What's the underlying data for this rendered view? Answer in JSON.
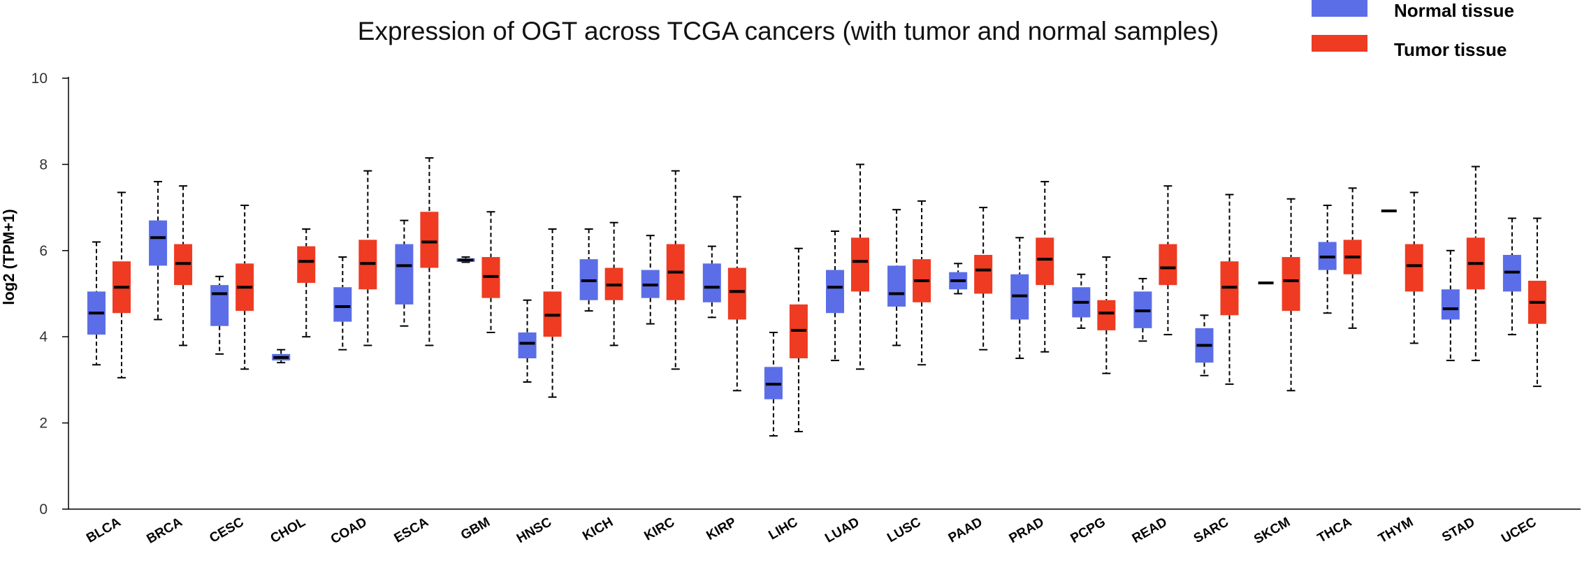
{
  "chart_data": {
    "type": "boxplot",
    "title": "Expression of OGT across TCGA cancers (with tumor and normal samples)",
    "xlabel": "",
    "ylabel": "log2 (TPM+1)",
    "ylim": [
      0,
      10
    ],
    "yticks": [
      0,
      2,
      4,
      6,
      8,
      10
    ],
    "legend_position": "top-right",
    "series_colors": {
      "normal": "#5b6ee8",
      "tumor": "#ee3b22"
    },
    "legend": [
      {
        "name": "Normal tissue",
        "key": "normal"
      },
      {
        "name": "Tumor tissue",
        "key": "tumor"
      }
    ],
    "categories": [
      {
        "label": "BLCA",
        "normal": {
          "min": 3.35,
          "q1": 4.05,
          "median": 4.55,
          "q3": 5.05,
          "max": 6.2
        },
        "tumor": {
          "min": 3.05,
          "q1": 4.55,
          "median": 5.15,
          "q3": 5.75,
          "max": 7.35
        }
      },
      {
        "label": "BRCA",
        "normal": {
          "min": 4.4,
          "q1": 5.65,
          "median": 6.3,
          "q3": 6.7,
          "max": 7.6
        },
        "tumor": {
          "min": 3.8,
          "q1": 5.2,
          "median": 5.7,
          "q3": 6.15,
          "max": 7.5
        }
      },
      {
        "label": "CESC",
        "normal": {
          "min": 3.6,
          "q1": 4.25,
          "median": 5.0,
          "q3": 5.2,
          "max": 5.4
        },
        "tumor": {
          "min": 3.25,
          "q1": 4.6,
          "median": 5.15,
          "q3": 5.7,
          "max": 7.05
        }
      },
      {
        "label": "CHOL",
        "normal": {
          "min": 3.4,
          "q1": 3.45,
          "median": 3.52,
          "q3": 3.6,
          "max": 3.7
        },
        "tumor": {
          "min": 4.0,
          "q1": 5.25,
          "median": 5.75,
          "q3": 6.1,
          "max": 6.5
        }
      },
      {
        "label": "COAD",
        "normal": {
          "min": 3.7,
          "q1": 4.35,
          "median": 4.7,
          "q3": 5.15,
          "max": 5.85
        },
        "tumor": {
          "min": 3.8,
          "q1": 5.1,
          "median": 5.7,
          "q3": 6.25,
          "max": 7.85
        }
      },
      {
        "label": "ESCA",
        "normal": {
          "min": 4.25,
          "q1": 4.75,
          "median": 5.65,
          "q3": 6.15,
          "max": 6.7
        },
        "tumor": {
          "min": 3.8,
          "q1": 5.6,
          "median": 6.2,
          "q3": 6.9,
          "max": 8.15
        }
      },
      {
        "label": "GBM",
        "normal": {
          "min": 5.73,
          "q1": 5.74,
          "median": 5.78,
          "q3": 5.82,
          "max": 5.85
        },
        "tumor": {
          "min": 4.1,
          "q1": 4.9,
          "median": 5.4,
          "q3": 5.85,
          "max": 6.9
        }
      },
      {
        "label": "HNSC",
        "normal": {
          "min": 2.95,
          "q1": 3.5,
          "median": 3.85,
          "q3": 4.1,
          "max": 4.85
        },
        "tumor": {
          "min": 2.6,
          "q1": 4.0,
          "median": 4.5,
          "q3": 5.05,
          "max": 6.5
        }
      },
      {
        "label": "KICH",
        "normal": {
          "min": 4.6,
          "q1": 4.85,
          "median": 5.3,
          "q3": 5.8,
          "max": 6.5
        },
        "tumor": {
          "min": 3.8,
          "q1": 4.85,
          "median": 5.2,
          "q3": 5.6,
          "max": 6.65
        }
      },
      {
        "label": "KIRC",
        "normal": {
          "min": 4.3,
          "q1": 4.9,
          "median": 5.2,
          "q3": 5.55,
          "max": 6.35
        },
        "tumor": {
          "min": 3.25,
          "q1": 4.85,
          "median": 5.5,
          "q3": 6.15,
          "max": 7.85
        }
      },
      {
        "label": "KIRP",
        "normal": {
          "min": 4.45,
          "q1": 4.8,
          "median": 5.15,
          "q3": 5.7,
          "max": 6.1
        },
        "tumor": {
          "min": 2.75,
          "q1": 4.4,
          "median": 5.05,
          "q3": 5.6,
          "max": 7.25
        }
      },
      {
        "label": "LIHC",
        "normal": {
          "min": 1.7,
          "q1": 2.55,
          "median": 2.9,
          "q3": 3.3,
          "max": 4.1
        },
        "tumor": {
          "min": 1.8,
          "q1": 3.5,
          "median": 4.15,
          "q3": 4.75,
          "max": 6.05
        }
      },
      {
        "label": "LUAD",
        "normal": {
          "min": 3.45,
          "q1": 4.55,
          "median": 5.15,
          "q3": 5.55,
          "max": 6.45
        },
        "tumor": {
          "min": 3.25,
          "q1": 5.05,
          "median": 5.75,
          "q3": 6.3,
          "max": 8.0
        }
      },
      {
        "label": "LUSC",
        "normal": {
          "min": 3.8,
          "q1": 4.7,
          "median": 5.0,
          "q3": 5.65,
          "max": 6.95
        },
        "tumor": {
          "min": 3.35,
          "q1": 4.8,
          "median": 5.3,
          "q3": 5.8,
          "max": 7.15
        }
      },
      {
        "label": "PAAD",
        "normal": {
          "min": 5.0,
          "q1": 5.1,
          "median": 5.3,
          "q3": 5.5,
          "max": 5.7
        },
        "tumor": {
          "min": 3.7,
          "q1": 5.0,
          "median": 5.55,
          "q3": 5.9,
          "max": 7.0
        }
      },
      {
        "label": "PRAD",
        "normal": {
          "min": 3.5,
          "q1": 4.4,
          "median": 4.95,
          "q3": 5.45,
          "max": 6.3
        },
        "tumor": {
          "min": 3.65,
          "q1": 5.2,
          "median": 5.8,
          "q3": 6.3,
          "max": 7.6
        }
      },
      {
        "label": "PCPG",
        "normal": {
          "min": 4.2,
          "q1": 4.45,
          "median": 4.8,
          "q3": 5.15,
          "max": 5.45
        },
        "tumor": {
          "min": 3.15,
          "q1": 4.15,
          "median": 4.55,
          "q3": 4.85,
          "max": 5.85
        }
      },
      {
        "label": "READ",
        "normal": {
          "min": 3.9,
          "q1": 4.2,
          "median": 4.6,
          "q3": 5.05,
          "max": 5.35
        },
        "tumor": {
          "min": 4.05,
          "q1": 5.2,
          "median": 5.6,
          "q3": 6.15,
          "max": 7.5
        }
      },
      {
        "label": "SARC",
        "normal": {
          "min": 3.1,
          "q1": 3.4,
          "median": 3.8,
          "q3": 4.2,
          "max": 4.5
        },
        "tumor": {
          "min": 2.9,
          "q1": 4.5,
          "median": 5.15,
          "q3": 5.75,
          "max": 7.3
        }
      },
      {
        "label": "SKCM",
        "normal": {
          "min": 5.25,
          "q1": 5.25,
          "median": 5.25,
          "q3": 5.25,
          "max": 5.25
        },
        "tumor": {
          "min": 2.75,
          "q1": 4.6,
          "median": 5.3,
          "q3": 5.85,
          "max": 7.2
        }
      },
      {
        "label": "THCA",
        "normal": {
          "min": 4.55,
          "q1": 5.55,
          "median": 5.85,
          "q3": 6.2,
          "max": 7.05
        },
        "tumor": {
          "min": 4.2,
          "q1": 5.45,
          "median": 5.85,
          "q3": 6.25,
          "max": 7.45
        }
      },
      {
        "label": "THYM",
        "normal": {
          "min": 6.92,
          "q1": 6.92,
          "median": 6.92,
          "q3": 6.92,
          "max": 6.92
        },
        "tumor": {
          "min": 3.85,
          "q1": 5.05,
          "median": 5.65,
          "q3": 6.15,
          "max": 7.35
        }
      },
      {
        "label": "STAD",
        "normal": {
          "min": 3.45,
          "q1": 4.4,
          "median": 4.65,
          "q3": 5.1,
          "max": 6.0
        },
        "tumor": {
          "min": 3.45,
          "q1": 5.1,
          "median": 5.7,
          "q3": 6.3,
          "max": 7.95
        }
      },
      {
        "label": "UCEC",
        "normal": {
          "min": 4.05,
          "q1": 5.05,
          "median": 5.5,
          "q3": 5.9,
          "max": 6.75
        },
        "tumor": {
          "min": 2.85,
          "q1": 4.3,
          "median": 4.8,
          "q3": 5.3,
          "max": 6.75
        }
      }
    ]
  }
}
